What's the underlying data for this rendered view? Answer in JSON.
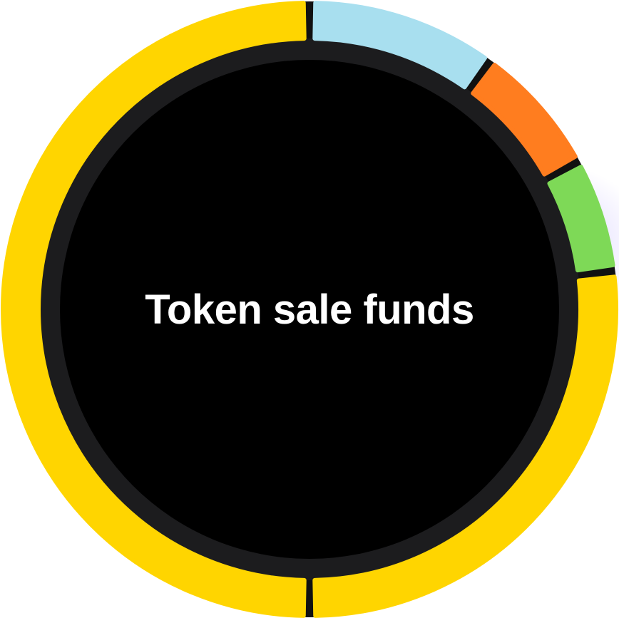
{
  "chart_data": {
    "type": "pie",
    "title": "Token sale funds",
    "style": "donut",
    "values": [
      50,
      10,
      7,
      6,
      27
    ],
    "colors": [
      "#FFD500",
      "#A8DFEF",
      "#FF7D1F",
      "#7ED957",
      "#FFD500"
    ],
    "center_color": "#000000",
    "track_color": "#1C1C1E"
  }
}
